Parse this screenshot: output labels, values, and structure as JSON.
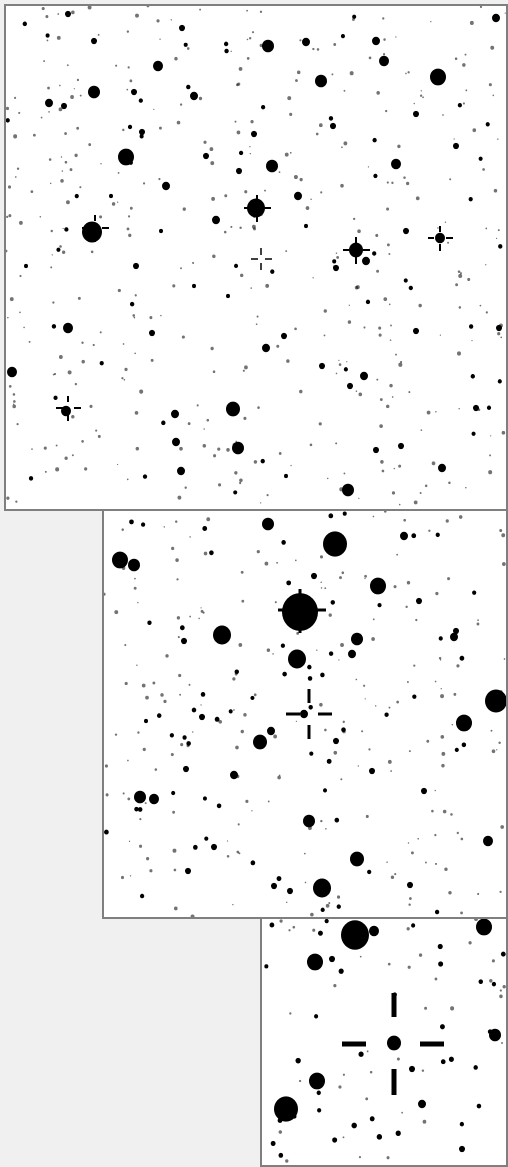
{
  "viewer": {
    "background_color": "#f0f0f0",
    "panel_border_color": "#7f7f7f",
    "star_color": "#000000",
    "sky_color": "#ffffff"
  },
  "panels": [
    {
      "id": "wide",
      "description_name": "wide-field-finder-panel"
    },
    {
      "id": "medium",
      "description_name": "medium-zoom-finder-panel"
    },
    {
      "id": "zoom",
      "description_name": "high-zoom-finder-panel"
    }
  ]
}
